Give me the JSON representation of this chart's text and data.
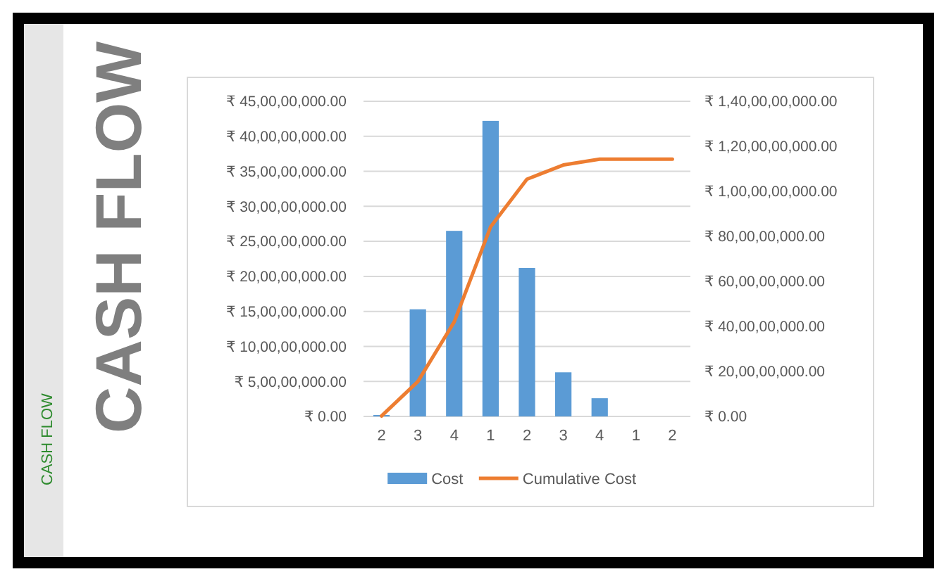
{
  "chart_data": {
    "type": "bar",
    "title": "CASH FLOW",
    "subtitle": "CASH FLOW",
    "categories": [
      "2",
      "3",
      "4",
      "1",
      "2",
      "3",
      "4",
      "1",
      "2"
    ],
    "series": [
      {
        "name": "Cost",
        "color": "#5b9bd5",
        "values": [
          2000000,
          153000000,
          265000000,
          422000000,
          212000000,
          63000000,
          26000000,
          0,
          0
        ]
      },
      {
        "name": "Cumulative Cost",
        "type": "line",
        "axis": "y2",
        "color": "#ed7d31",
        "values": [
          2000000,
          155000000,
          420000000,
          842000000,
          1054000000,
          1117000000,
          1143000000,
          1143000000,
          1143000000
        ]
      }
    ],
    "ylim": [
      0,
      450000000
    ],
    "yticks": [
      {
        "value": 0,
        "label": "₹ 0.00"
      },
      {
        "value": 50000000,
        "label": "₹ 5,00,00,000.00"
      },
      {
        "value": 100000000,
        "label": "₹ 10,00,00,000.00"
      },
      {
        "value": 150000000,
        "label": "₹ 15,00,00,000.00"
      },
      {
        "value": 200000000,
        "label": "₹ 20,00,00,000.00"
      },
      {
        "value": 250000000,
        "label": "₹ 25,00,00,000.00"
      },
      {
        "value": 300000000,
        "label": "₹ 30,00,00,000.00"
      },
      {
        "value": 350000000,
        "label": "₹ 35,00,00,000.00"
      },
      {
        "value": 400000000,
        "label": "₹ 40,00,00,000.00"
      },
      {
        "value": 450000000,
        "label": "₹ 45,00,00,000.00"
      }
    ],
    "y2lim": [
      0,
      1400000000
    ],
    "y2ticks": [
      {
        "value": 0,
        "label": "₹ 0.00"
      },
      {
        "value": 200000000,
        "label": "₹ 20,00,00,000.00"
      },
      {
        "value": 400000000,
        "label": "₹ 40,00,00,000.00"
      },
      {
        "value": 600000000,
        "label": "₹ 60,00,00,000.00"
      },
      {
        "value": 800000000,
        "label": "₹ 80,00,00,000.00"
      },
      {
        "value": 1000000000,
        "label": "₹ 1,00,00,00,000.00"
      },
      {
        "value": 1200000000,
        "label": "₹ 1,20,00,00,000.00"
      },
      {
        "value": 1400000000,
        "label": "₹ 1,40,00,00,000.00"
      }
    ],
    "grid": "y",
    "legend": "bottom",
    "marker": "none",
    "line_style": "solid"
  }
}
